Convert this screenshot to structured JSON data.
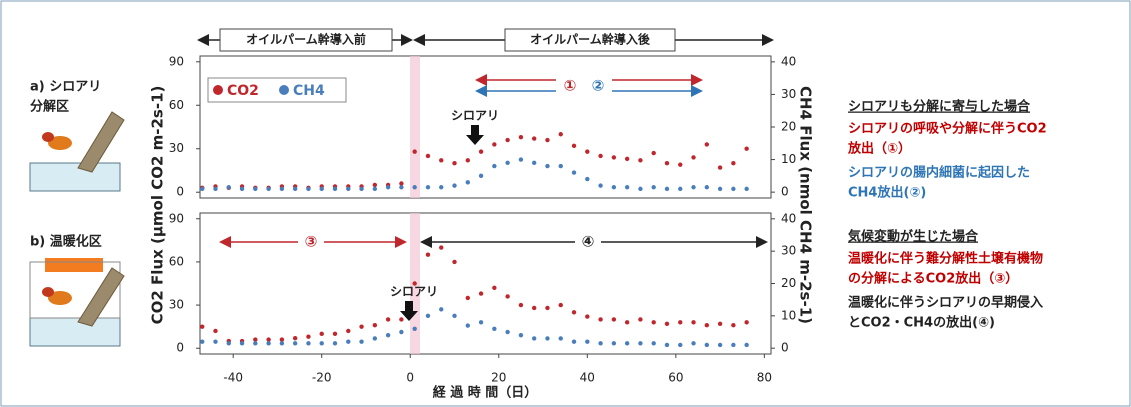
{
  "header": {
    "before": "オイルパーム幹導入前",
    "after": "オイルパーム幹導入後"
  },
  "panel_labels": [
    [
      "a) シロアリ",
      "分解区"
    ],
    [
      "b) 温暖化区"
    ]
  ],
  "axis_labels": {
    "y": "CO2 Flux (μmol CO2 m-2s-1)",
    "y2": "CH4 Flux (nmol CH4 m-2s-1)",
    "x": "経 過 時 間（日）"
  },
  "chart_data": [
    {
      "type": "scatter",
      "xlim": [
        -47.5,
        81.5
      ],
      "ylim": [
        -4,
        94
      ],
      "yticks": [
        0,
        30,
        60,
        90
      ],
      "y2lim": [
        -1.8,
        41.8
      ],
      "y2ticks": [
        0,
        10,
        20,
        30,
        40
      ],
      "annotations": [
        "シロアリ",
        "①",
        "②"
      ],
      "x": [
        -47,
        -44,
        -41,
        -38,
        -35,
        -32,
        -29,
        -26,
        -23,
        -20,
        -17,
        -14,
        -11,
        -8,
        -5,
        -2,
        1,
        4,
        7,
        10,
        13,
        16,
        19,
        22,
        25,
        28,
        31,
        34,
        37,
        40,
        43,
        46,
        49,
        52,
        55,
        58,
        61,
        64,
        67,
        70,
        73,
        76
      ],
      "series": [
        {
          "name": "CO2",
          "color": "#c0272d",
          "values": [
            3,
            4,
            3,
            4,
            3,
            3,
            4,
            4,
            3,
            4,
            4,
            4,
            4,
            5,
            5,
            6,
            28,
            25,
            22,
            20,
            22,
            28,
            33,
            36,
            38,
            37,
            36,
            40,
            32,
            28,
            25,
            24,
            23,
            22,
            27,
            20,
            19,
            24,
            33,
            17,
            20,
            30
          ]
        },
        {
          "name": "CH4",
          "color": "#4a7ebb",
          "axis": "y2",
          "values": [
            1,
            1,
            1.5,
            1,
            1,
            1,
            1,
            1,
            1,
            1,
            1,
            1,
            1,
            1,
            1.5,
            1.5,
            1.5,
            1.5,
            1.5,
            2,
            3,
            5,
            8,
            9,
            10,
            9,
            8,
            8,
            6,
            4,
            2,
            1.5,
            1.5,
            1,
            1.5,
            1,
            1,
            1.5,
            1.5,
            1,
            1,
            1
          ]
        }
      ]
    },
    {
      "type": "scatter",
      "xlim": [
        -47.5,
        81.5
      ],
      "ylim": [
        -4,
        94
      ],
      "yticks": [
        0,
        30,
        60,
        90
      ],
      "y2lim": [
        -1.8,
        41.8
      ],
      "y2ticks": [
        0,
        10,
        20,
        30,
        40
      ],
      "xticks": [
        -40,
        -20,
        0,
        20,
        40,
        60,
        80
      ],
      "annotations": [
        "③",
        "④",
        "シロアリ"
      ],
      "x": [
        -47,
        -44,
        -41,
        -38,
        -35,
        -32,
        -29,
        -26,
        -23,
        -20,
        -17,
        -14,
        -11,
        -8,
        -5,
        -2,
        1,
        4,
        7,
        10,
        13,
        16,
        19,
        22,
        25,
        28,
        31,
        34,
        37,
        40,
        43,
        46,
        49,
        52,
        55,
        58,
        61,
        64,
        67,
        70,
        73,
        76
      ],
      "series": [
        {
          "color": "#c0272d",
          "values": [
            15,
            12,
            5,
            5,
            6,
            6,
            6,
            7,
            8,
            10,
            10,
            12,
            15,
            16,
            20,
            20,
            45,
            65,
            70,
            60,
            35,
            38,
            42,
            36,
            30,
            28,
            28,
            30,
            25,
            22,
            20,
            20,
            18,
            20,
            18,
            17,
            18,
            18,
            16,
            17,
            16,
            18
          ]
        },
        {
          "color": "#4a7ebb",
          "axis": "y2",
          "values": [
            2,
            2,
            1.5,
            1.5,
            1.5,
            1.5,
            1.5,
            1.5,
            1.5,
            1.5,
            1.5,
            2,
            2,
            3,
            4,
            5,
            6,
            10,
            12,
            10,
            7,
            8,
            6,
            5,
            4,
            3,
            3,
            3,
            2,
            2,
            1.5,
            1.5,
            1.5,
            1.5,
            1.5,
            1,
            1,
            1.5,
            1,
            1,
            1,
            1
          ]
        }
      ]
    }
  ],
  "notes": [
    {
      "heading": "シロアリも分解に寄与した場合",
      "items": [
        {
          "color": "#c00000",
          "lines": [
            "シロアリの呼吸や分解に伴うCO2",
            "放出（①）"
          ]
        },
        {
          "color": "#2e75b6",
          "lines": [
            "シロアリの腸内細菌に起因した",
            "CH4放出(②)"
          ]
        }
      ]
    },
    {
      "heading": "気候変動が生じた場合",
      "items": [
        {
          "color": "#c00000",
          "lines": [
            "温暖化に伴う難分解性土壌有機物",
            "の分解によるCO2放出（③）"
          ]
        },
        {
          "color": "#222222",
          "lines": [
            "温暖化に伴うシロアリの早期侵入",
            "とCO2・CH4の放出(④)"
          ]
        }
      ]
    }
  ]
}
